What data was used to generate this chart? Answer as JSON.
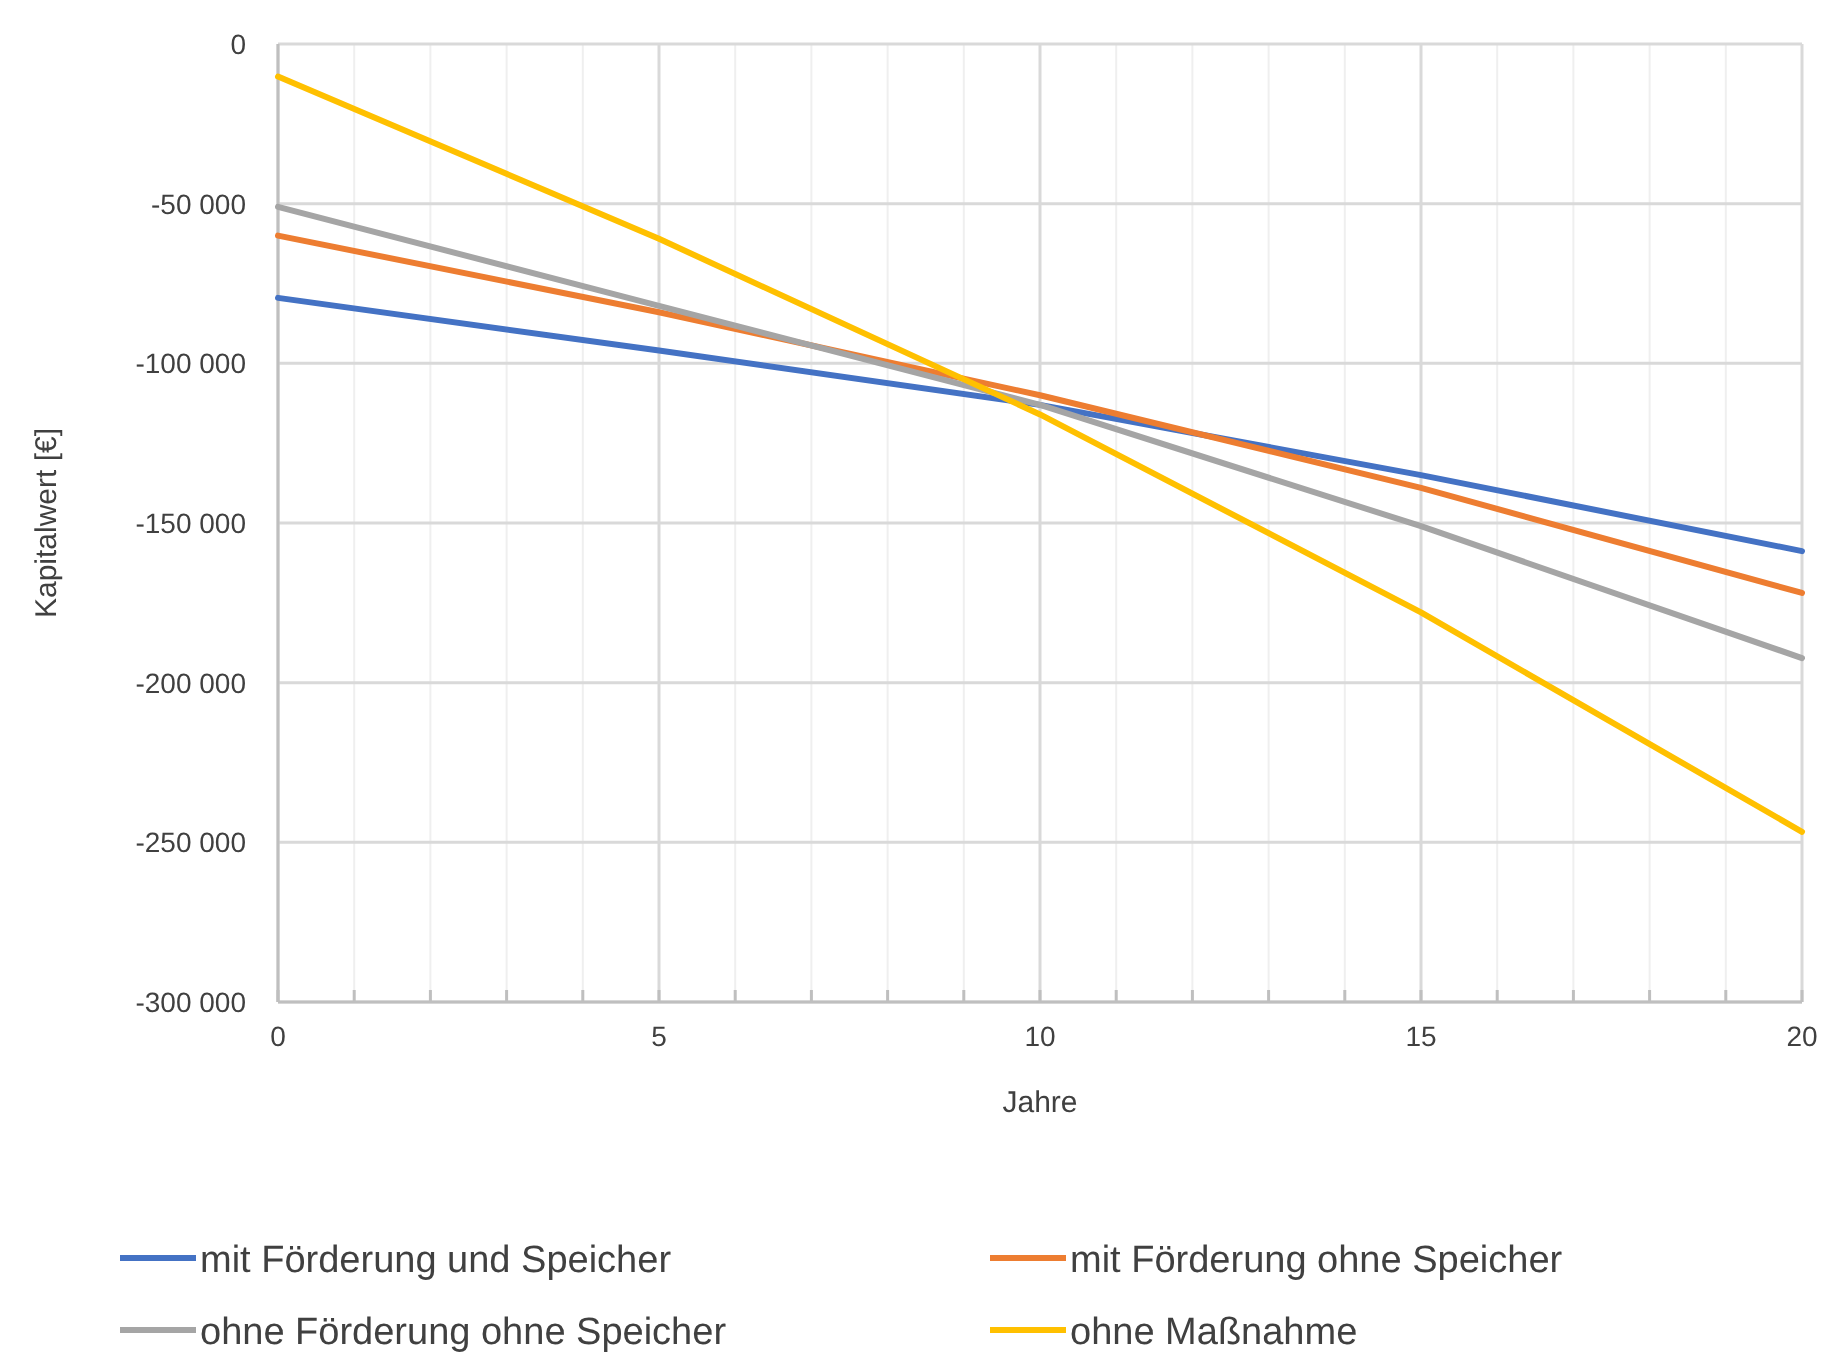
{
  "chart_data": {
    "type": "line",
    "xlabel": "Jahre",
    "ylabel": "Kapitalwert [€]",
    "x": [
      0,
      5,
      10,
      15,
      20
    ],
    "series": [
      {
        "name": "mit Förderung und Speicher",
        "color": "#4472c4",
        "values": [
          -79500,
          -96000,
          -113000,
          -135000,
          -158800
        ]
      },
      {
        "name": "mit Förderung ohne Speicher",
        "color": "#ed7d31",
        "values": [
          -60000,
          -84000,
          -110000,
          -139000,
          -171900
        ]
      },
      {
        "name": "ohne Förderung ohne Speicher",
        "color": "#a5a5a5",
        "values": [
          -51000,
          -82000,
          -113000,
          -151000,
          -192300
        ]
      },
      {
        "name": "ohne Maßnahme",
        "color": "#ffc000",
        "values": [
          -10200,
          -61000,
          -116000,
          -178000,
          -246700
        ]
      }
    ],
    "xlim": [
      0,
      20
    ],
    "xticks": [
      0,
      {
        "value": 1,
        "label": null
      },
      {
        "value": 2,
        "label": null
      },
      {
        "value": 3,
        "label": null
      },
      {
        "value": 4,
        "label": null
      },
      5,
      {
        "value": 6,
        "label": null
      },
      {
        "value": 7,
        "label": null
      },
      {
        "value": 8,
        "label": null
      },
      {
        "value": 9,
        "label": null
      },
      10,
      {
        "value": 11,
        "label": null
      },
      {
        "value": 12,
        "label": null
      },
      {
        "value": 13,
        "label": null
      },
      {
        "value": 14,
        "label": null
      },
      15,
      {
        "value": 16,
        "label": null
      },
      {
        "value": 17,
        "label": null
      },
      {
        "value": 18,
        "label": null
      },
      {
        "value": 19,
        "label": null
      },
      20
    ],
    "ylim": [
      -300000,
      0
    ],
    "yticks": [
      {
        "value": -300000,
        "label": "-300 000"
      },
      {
        "value": -250000,
        "label": "-250 000"
      },
      {
        "value": -200000,
        "label": "-200 000"
      },
      {
        "value": -150000,
        "label": "-150 000"
      },
      {
        "value": -100000,
        "label": "-100 000"
      },
      {
        "value": -50000,
        "label": "-50 000"
      },
      0
    ],
    "grid": true,
    "legend": "bottom",
    "marker": "none",
    "line_style": "solid"
  }
}
